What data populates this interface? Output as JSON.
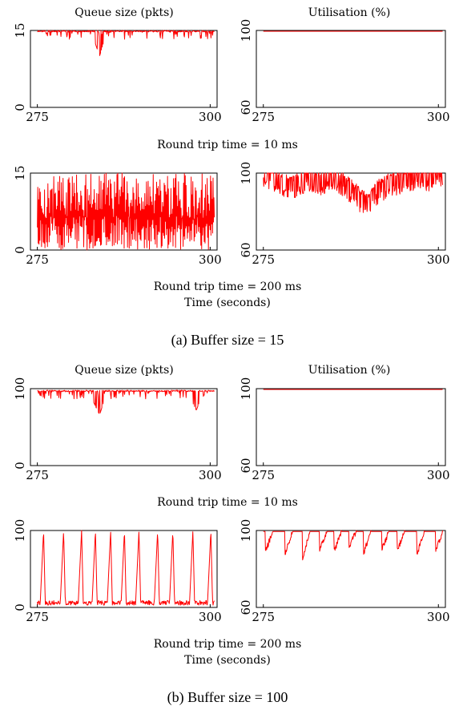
{
  "colors": {
    "trace": "#ff0000",
    "frame": "#000000"
  },
  "figures": [
    {
      "caption": "(a) Buffer size = 15",
      "queue_title": "Queue size (pkts)",
      "util_title": "Utilisation (%)",
      "rtt_labels": [
        "Round trip time = 10 ms",
        "Round trip time = 200 ms"
      ],
      "xlabel": "Time (seconds)"
    },
    {
      "caption": "(b) Buffer size = 100",
      "queue_title": "Queue size (pkts)",
      "util_title": "Utilisation (%)",
      "rtt_labels": [
        "Round trip time = 10 ms",
        "Round trip time = 200 ms"
      ],
      "xlabel": "Time (seconds)"
    }
  ],
  "chart_data": [
    {
      "panel": "a-queue-10ms",
      "type": "line",
      "title": "Queue size (pkts)",
      "xlabel": "",
      "ylabel": "",
      "xlim": [
        274,
        301
      ],
      "ylim": [
        0,
        15
      ],
      "xticks": [
        "275",
        "300"
      ],
      "yticks": [
        "0",
        "15"
      ],
      "series": [
        {
          "behaviour": "flat_high_with_dips",
          "level": 15,
          "dip_min": 10,
          "x": [
            275,
            277,
            279,
            281,
            283,
            284,
            285,
            287,
            289,
            291,
            293,
            295,
            297,
            299,
            300.5
          ],
          "values": [
            15,
            14.5,
            13.5,
            14.8,
            14,
            10,
            14.6,
            14.2,
            14.8,
            13.8,
            14.5,
            14.9,
            14.3,
            14.7,
            13
          ]
        }
      ]
    },
    {
      "panel": "a-util-10ms",
      "type": "line",
      "title": "Utilisation (%)",
      "xlabel": "",
      "ylabel": "",
      "xlim": [
        274,
        301
      ],
      "ylim": [
        60,
        100
      ],
      "xticks": [
        "275",
        "300"
      ],
      "yticks": [
        "60",
        "100"
      ],
      "series": [
        {
          "behaviour": "constant",
          "level": 100,
          "x": [
            275,
            300.5
          ],
          "values": [
            100,
            100
          ]
        }
      ]
    },
    {
      "panel": "a-queue-200ms",
      "type": "line",
      "title": "",
      "xlabel": "",
      "ylabel": "",
      "xlim": [
        274,
        301
      ],
      "ylim": [
        0,
        15
      ],
      "xticks": [
        "275",
        "300"
      ],
      "yticks": [
        "0",
        "15"
      ],
      "series": [
        {
          "behaviour": "dense_oscillation",
          "low": 0,
          "high": 15,
          "x": [
            275,
            277,
            279,
            281,
            283,
            285,
            287,
            289,
            291,
            293,
            295,
            297,
            299,
            300.5
          ],
          "values": [
            5,
            14,
            2,
            11,
            7,
            13,
            1,
            9,
            12,
            3,
            10,
            6,
            14,
            4
          ]
        }
      ]
    },
    {
      "panel": "a-util-200ms",
      "type": "line",
      "title": "",
      "xlabel": "",
      "ylabel": "",
      "xlim": [
        274,
        301
      ],
      "ylim": [
        60,
        100
      ],
      "xticks": [
        "275",
        "300"
      ],
      "yticks": [
        "60",
        "100"
      ],
      "series": [
        {
          "behaviour": "high_with_dips",
          "level": 100,
          "dip_min": 82,
          "x": [
            275,
            277,
            279,
            281,
            283,
            285,
            287,
            289,
            290,
            291,
            293,
            295,
            297,
            299,
            300.5
          ],
          "values": [
            98,
            95,
            91,
            96,
            94,
            97,
            92,
            85,
            82,
            89,
            93,
            95,
            97,
            96,
            99
          ]
        }
      ]
    },
    {
      "panel": "b-queue-10ms",
      "type": "line",
      "title": "Queue size (pkts)",
      "xlabel": "",
      "ylabel": "",
      "xlim": [
        274,
        301
      ],
      "ylim": [
        0,
        100
      ],
      "xticks": [
        "275",
        "300"
      ],
      "yticks": [
        "0",
        "100"
      ],
      "series": [
        {
          "behaviour": "flat_high_with_dips",
          "level": 98,
          "dip_min": 66,
          "x": [
            275,
            277,
            279,
            281,
            283,
            284,
            285,
            287,
            289,
            291,
            293,
            295,
            297,
            298,
            299,
            300.5
          ],
          "values": [
            98,
            96,
            90,
            95,
            85,
            66,
            94,
            97,
            93,
            96,
            95,
            97,
            90,
            72,
            96,
            97
          ]
        }
      ]
    },
    {
      "panel": "b-util-10ms",
      "type": "line",
      "title": "Utilisation (%)",
      "xlabel": "",
      "ylabel": "",
      "xlim": [
        274,
        301
      ],
      "ylim": [
        60,
        100
      ],
      "xticks": [
        "275",
        "300"
      ],
      "yticks": [
        "60",
        "100"
      ],
      "series": [
        {
          "behaviour": "constant",
          "level": 100,
          "x": [
            275,
            300.5
          ],
          "values": [
            100,
            100
          ]
        }
      ]
    },
    {
      "panel": "b-queue-200ms",
      "type": "line",
      "title": "",
      "xlabel": "",
      "ylabel": "",
      "xlim": [
        274,
        301
      ],
      "ylim": [
        0,
        100
      ],
      "xticks": [
        "275",
        "300"
      ],
      "yticks": [
        "0",
        "100"
      ],
      "series": [
        {
          "behaviour": "sawtooth_cycles",
          "low": 3,
          "high": 100,
          "peak_x": [
            275.9,
            278.8,
            281.4,
            283.4,
            285.6,
            287.6,
            289.7,
            292.4,
            294.6,
            297.5,
            300.1
          ],
          "x": [
            275,
            275.9,
            278.8,
            281.4,
            283.4,
            285.6,
            287.6,
            289.7,
            292.4,
            294.6,
            297.5,
            300.1
          ],
          "values": [
            3,
            100,
            100,
            100,
            100,
            100,
            100,
            100,
            100,
            100,
            100,
            100
          ]
        }
      ]
    },
    {
      "panel": "b-util-200ms",
      "type": "line",
      "title": "",
      "xlabel": "",
      "ylabel": "",
      "xlim": [
        274,
        301
      ],
      "ylim": [
        60,
        100
      ],
      "xticks": [
        "275",
        "300"
      ],
      "yticks": [
        "60",
        "100"
      ],
      "series": [
        {
          "behaviour": "periodic_dips",
          "level": 100,
          "dip_min": 86,
          "dip_x": [
            275.3,
            278.1,
            280.6,
            283.0,
            285.1,
            287.2,
            289.3,
            291.9,
            294.1,
            296.9,
            299.6
          ],
          "x": [
            275.3,
            278.1,
            280.6,
            283.0,
            285.1,
            287.2,
            289.3,
            291.9,
            294.1,
            296.9,
            299.6
          ],
          "values": [
            89,
            88,
            86,
            90,
            89,
            91,
            88,
            90,
            89,
            87,
            90
          ]
        }
      ]
    }
  ]
}
